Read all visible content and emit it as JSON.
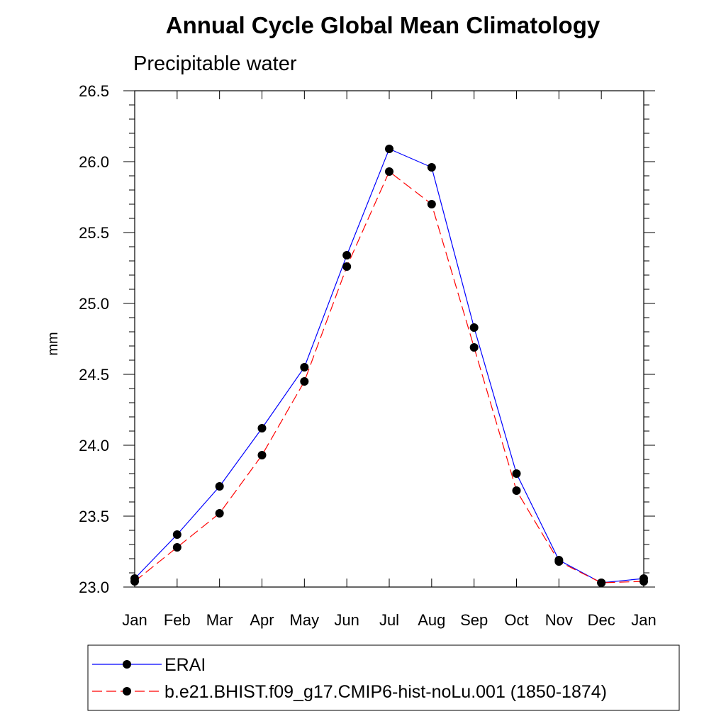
{
  "chart_data": {
    "type": "line",
    "title": "Annual Cycle Global Mean Climatology",
    "subtitle": "Precipitable water",
    "xlabel": "",
    "ylabel": "mm",
    "categories": [
      "Jan",
      "Feb",
      "Mar",
      "Apr",
      "May",
      "Jun",
      "Jul",
      "Aug",
      "Sep",
      "Oct",
      "Nov",
      "Dec",
      "Jan"
    ],
    "ylim": [
      23.0,
      26.5
    ],
    "yticks": [
      "23.0",
      "23.5",
      "24.0",
      "24.5",
      "25.0",
      "25.5",
      "26.0",
      "26.5"
    ],
    "grid": false,
    "legend_position": "bottom",
    "series": [
      {
        "name": "ERAI",
        "color": "#0000ff",
        "line_style": "solid",
        "marker": "filled-circle",
        "values": [
          23.06,
          23.37,
          23.71,
          24.12,
          24.55,
          25.34,
          26.09,
          25.96,
          24.83,
          23.8,
          23.19,
          23.03,
          23.06
        ]
      },
      {
        "name": "b.e21.BHIST.f09_g17.CMIP6-hist-noLu.001 (1850-1874)",
        "color": "#ff0000",
        "line_style": "dashed",
        "marker": "filled-circle",
        "values": [
          23.04,
          23.28,
          23.52,
          23.93,
          24.45,
          25.26,
          25.93,
          25.7,
          24.69,
          23.68,
          23.18,
          23.03,
          23.04
        ]
      }
    ]
  }
}
